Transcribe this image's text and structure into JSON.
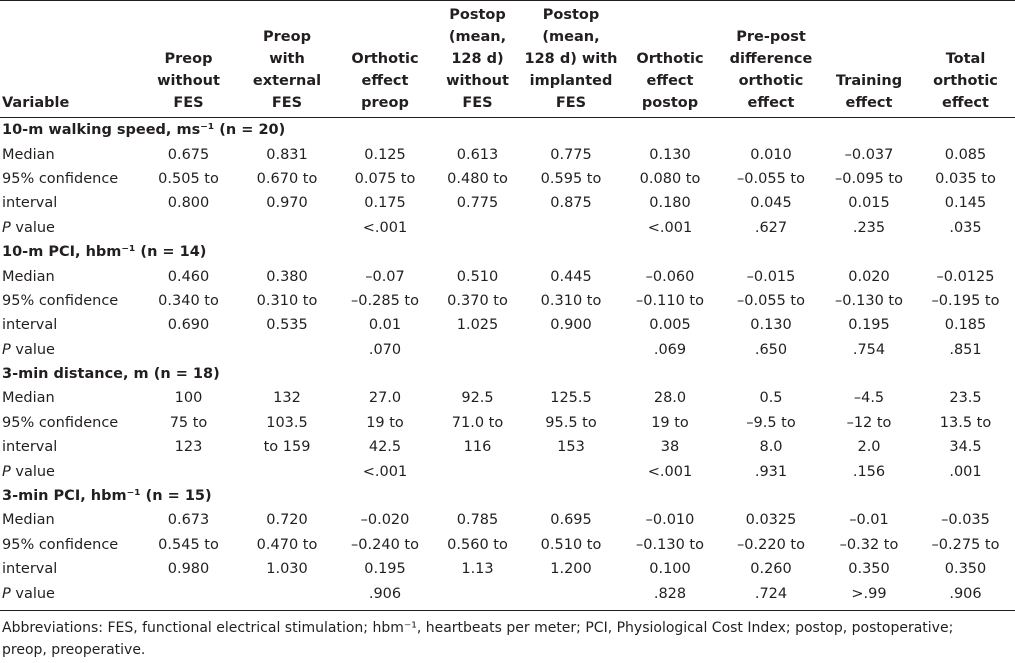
{
  "header": {
    "variable": "Variable",
    "columns": [
      "Preop\nwithout\nFES",
      "Preop\nwith\nexternal\nFES",
      "Orthotic\neffect preop",
      "Postop\n(mean,\n128 d)\nwithout\nFES",
      "Postop\n(mean,\n128 d) with\nimplanted\nFES",
      "Orthotic\neffect\npostop",
      "Pre-post\ndifference\northotic\neffect",
      "Training\neffect",
      "Total\northotic\neffect"
    ]
  },
  "sections": [
    {
      "title": "10-m walking speed, ms⁻¹ (n = 20)",
      "rows": [
        {
          "label": "Median",
          "cells": [
            "0.675",
            "0.831",
            "0.125",
            "0.613",
            "0.775",
            "0.130",
            "0.010",
            "–0.037",
            "0.085"
          ]
        },
        {
          "label": "95% confidence",
          "cells": [
            "0.505 to",
            "0.670 to",
            "0.075 to",
            "0.480 to",
            "0.595 to",
            "0.080 to",
            "–0.055 to",
            "–0.095 to",
            "0.035 to"
          ]
        },
        {
          "label": "interval",
          "cells": [
            "0.800",
            "0.970",
            "0.175",
            "0.775",
            "0.875",
            "0.180",
            "0.045",
            "0.015",
            "0.145"
          ]
        },
        {
          "label": "P value",
          "cells": [
            null,
            null,
            "<.001",
            null,
            null,
            "<.001",
            ".627",
            ".235",
            ".035"
          ]
        }
      ]
    },
    {
      "title": "10-m PCI, hbm⁻¹ (n = 14)",
      "rows": [
        {
          "label": "Median",
          "cells": [
            "0.460",
            "0.380",
            "–0.07",
            "0.510",
            "0.445",
            "–0.060",
            "–0.015",
            "0.020",
            "–0.0125"
          ]
        },
        {
          "label": "95% confidence",
          "cells": [
            "0.340 to",
            "0.310 to",
            "–0.285 to",
            "0.370 to",
            "0.310 to",
            "–0.110 to",
            "–0.055 to",
            "–0.130 to",
            "–0.195 to"
          ]
        },
        {
          "label": "interval",
          "cells": [
            "0.690",
            "0.535",
            "0.01",
            "1.025",
            "0.900",
            "0.005",
            "0.130",
            "0.195",
            "0.185"
          ]
        },
        {
          "label": "P value",
          "cells": [
            null,
            null,
            ".070",
            null,
            null,
            ".069",
            ".650",
            ".754",
            ".851"
          ]
        }
      ]
    },
    {
      "title": "3-min distance, m (n = 18)",
      "rows": [
        {
          "label": "Median",
          "cells": [
            "100",
            "132",
            "27.0",
            "92.5",
            "125.5",
            "28.0",
            "0.5",
            "–4.5",
            "23.5"
          ]
        },
        {
          "label": "95% confidence",
          "cells": [
            "75 to",
            "103.5",
            "19 to",
            "71.0 to",
            "95.5 to",
            "19 to",
            "–9.5 to",
            "–12 to",
            "13.5 to"
          ]
        },
        {
          "label": "interval",
          "cells": [
            "123",
            "to 159",
            "42.5",
            "116",
            "153",
            "38",
            "8.0",
            "2.0",
            "34.5"
          ]
        },
        {
          "label": "P value",
          "cells": [
            null,
            null,
            "<.001",
            null,
            null,
            "<.001",
            ".931",
            ".156",
            ".001"
          ]
        }
      ]
    },
    {
      "title": "3-min PCI, hbm⁻¹ (n = 15)",
      "rows": [
        {
          "label": "Median",
          "cells": [
            "0.673",
            "0.720",
            "–0.020",
            "0.785",
            "0.695",
            "–0.010",
            "0.0325",
            "–0.01",
            "–0.035"
          ]
        },
        {
          "label": "95% confidence",
          "cells": [
            "0.545 to",
            "0.470 to",
            "–0.240 to",
            "0.560 to",
            "0.510 to",
            "–0.130 to",
            "–0.220 to",
            "–0.32 to",
            "–0.275 to"
          ]
        },
        {
          "label": "interval",
          "cells": [
            "0.980",
            "1.030",
            "0.195",
            "1.13",
            "1.200",
            "0.100",
            "0.260",
            "0.350",
            "0.350"
          ]
        },
        {
          "label": "P value",
          "cells": [
            null,
            null,
            ".906",
            null,
            null,
            ".828",
            ".724",
            ">.99",
            ".906"
          ]
        }
      ]
    }
  ],
  "footnote": "Abbreviations: FES, functional electrical stimulation; hbm⁻¹, heartbeats per meter; PCI, Physiological Cost Index; postop, postoperative; preop, preoperative."
}
